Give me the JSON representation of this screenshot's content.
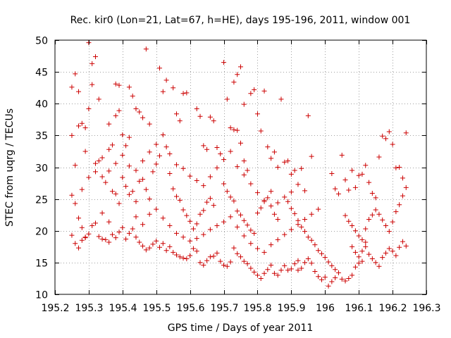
{
  "chart_data": {
    "type": "scatter",
    "title": "Rec. kir0 (Lon=21, Lat=67, h=HE), days 195-196, 2011, window 001",
    "xlabel": "GPS time / Days of year 2011",
    "ylabel": "STEC from uqrg / TECUs",
    "xlim": [
      195.2,
      196.3
    ],
    "ylim": [
      10,
      50
    ],
    "x_ticks": [
      195.2,
      195.3,
      195.4,
      195.5,
      195.6,
      195.7,
      195.8,
      195.9,
      196.0,
      196.1,
      196.2,
      196.3
    ],
    "x_tick_labels": [
      "195.2",
      "195.3",
      "195.4",
      "195.5",
      "195.6",
      "195.7",
      "195.8",
      "195.9",
      "196",
      "196.1",
      "196.2",
      "196.3"
    ],
    "y_ticks": [
      10,
      15,
      20,
      25,
      30,
      35,
      40,
      45,
      50
    ],
    "y_tick_labels": [
      "10",
      "15",
      "20",
      "25",
      "30",
      "35",
      "40",
      "45",
      "50"
    ],
    "grid": true,
    "legend": "none",
    "marker": "plus",
    "color": "#cc0000",
    "points": [
      [
        195.25,
        42.6
      ],
      [
        195.26,
        44.7
      ],
      [
        195.27,
        41.9
      ],
      [
        195.25,
        35.0
      ],
      [
        195.26,
        30.3
      ],
      [
        195.27,
        36.5
      ],
      [
        195.28,
        36.9
      ],
      [
        195.29,
        32.5
      ],
      [
        195.3,
        49.6
      ],
      [
        195.31,
        46.3
      ],
      [
        195.32,
        47.4
      ],
      [
        195.33,
        40.7
      ],
      [
        195.31,
        43.0
      ],
      [
        195.3,
        39.2
      ],
      [
        195.29,
        36.2
      ],
      [
        195.25,
        25.6
      ],
      [
        195.26,
        24.3
      ],
      [
        195.27,
        22.0
      ],
      [
        195.28,
        20.5
      ],
      [
        195.29,
        19.0
      ],
      [
        195.25,
        19.3
      ],
      [
        195.26,
        18.0
      ],
      [
        195.27,
        17.3
      ],
      [
        195.28,
        18.5
      ],
      [
        195.29,
        18.9
      ],
      [
        195.3,
        19.5
      ],
      [
        195.31,
        20.8
      ],
      [
        195.32,
        21.2
      ],
      [
        195.33,
        19.1
      ],
      [
        195.34,
        18.7
      ],
      [
        195.32,
        30.6
      ],
      [
        195.33,
        31.0
      ],
      [
        195.34,
        28.5
      ],
      [
        195.35,
        27.6
      ],
      [
        195.36,
        29.4
      ],
      [
        195.37,
        26.2
      ],
      [
        195.38,
        25.8
      ],
      [
        195.39,
        24.3
      ],
      [
        195.36,
        36.8
      ],
      [
        195.37,
        33.5
      ],
      [
        195.38,
        38.1
      ],
      [
        195.39,
        38.9
      ],
      [
        195.4,
        35.1
      ],
      [
        195.41,
        33.4
      ],
      [
        195.42,
        34.7
      ],
      [
        195.38,
        43.1
      ],
      [
        195.39,
        42.9
      ],
      [
        195.42,
        42.6
      ],
      [
        195.43,
        41.2
      ],
      [
        195.44,
        39.2
      ],
      [
        195.45,
        38.7
      ],
      [
        195.46,
        37.8
      ],
      [
        195.47,
        48.6
      ],
      [
        195.48,
        36.8
      ],
      [
        195.35,
        18.6
      ],
      [
        195.36,
        18.2
      ],
      [
        195.37,
        19.4
      ],
      [
        195.38,
        18.9
      ],
      [
        195.39,
        19.8
      ],
      [
        195.4,
        20.5
      ],
      [
        195.41,
        18.7
      ],
      [
        195.42,
        19.6
      ],
      [
        195.43,
        20.3
      ],
      [
        195.44,
        19.0
      ],
      [
        195.45,
        18.2
      ],
      [
        195.46,
        17.6
      ],
      [
        195.47,
        17.0
      ],
      [
        195.48,
        17.3
      ],
      [
        195.49,
        17.9
      ],
      [
        195.5,
        18.4
      ],
      [
        195.4,
        28.4
      ],
      [
        195.41,
        27.0
      ],
      [
        195.42,
        25.7
      ],
      [
        195.43,
        26.2
      ],
      [
        195.44,
        24.6
      ],
      [
        195.45,
        27.8
      ],
      [
        195.46,
        28.1
      ],
      [
        195.47,
        26.5
      ],
      [
        195.48,
        25.0
      ],
      [
        195.49,
        29.3
      ],
      [
        195.5,
        30.5
      ],
      [
        195.51,
        31.8
      ],
      [
        195.52,
        35.1
      ],
      [
        195.53,
        33.2
      ],
      [
        195.51,
        45.6
      ],
      [
        195.52,
        41.9
      ],
      [
        195.53,
        43.7
      ],
      [
        195.55,
        42.5
      ],
      [
        195.56,
        38.4
      ],
      [
        195.57,
        37.3
      ],
      [
        195.58,
        41.6
      ],
      [
        195.59,
        41.7
      ],
      [
        195.54,
        29.0
      ],
      [
        195.55,
        26.6
      ],
      [
        195.56,
        25.4
      ],
      [
        195.57,
        24.8
      ],
      [
        195.58,
        23.3
      ],
      [
        195.59,
        22.4
      ],
      [
        195.6,
        21.5
      ],
      [
        195.61,
        20.3
      ],
      [
        195.62,
        21.1
      ],
      [
        195.63,
        22.6
      ],
      [
        195.64,
        23.2
      ],
      [
        195.65,
        24.5
      ],
      [
        195.66,
        25.1
      ],
      [
        195.67,
        24.0
      ],
      [
        195.51,
        17.4
      ],
      [
        195.52,
        18.0
      ],
      [
        195.53,
        16.9
      ],
      [
        195.54,
        17.5
      ],
      [
        195.55,
        16.6
      ],
      [
        195.56,
        16.2
      ],
      [
        195.57,
        15.9
      ],
      [
        195.58,
        15.7
      ],
      [
        195.59,
        15.6
      ],
      [
        195.6,
        16.1
      ],
      [
        195.61,
        17.2
      ],
      [
        195.62,
        16.8
      ],
      [
        195.63,
        15.0
      ],
      [
        195.64,
        14.6
      ],
      [
        195.65,
        15.3
      ],
      [
        195.66,
        15.9
      ],
      [
        195.67,
        16.0
      ],
      [
        195.68,
        16.5
      ],
      [
        195.69,
        15.2
      ],
      [
        195.7,
        14.6
      ],
      [
        195.71,
        14.4
      ],
      [
        195.72,
        15.1
      ],
      [
        195.62,
        39.2
      ],
      [
        195.63,
        38.0
      ],
      [
        195.64,
        33.4
      ],
      [
        195.65,
        32.8
      ],
      [
        195.66,
        37.9
      ],
      [
        195.67,
        37.3
      ],
      [
        195.68,
        33.1
      ],
      [
        195.69,
        32.1
      ],
      [
        195.7,
        46.5
      ],
      [
        195.71,
        40.7
      ],
      [
        195.72,
        36.2
      ],
      [
        195.73,
        43.4
      ],
      [
        195.74,
        44.6
      ],
      [
        195.75,
        45.8
      ],
      [
        195.76,
        39.9
      ],
      [
        195.73,
        35.9
      ],
      [
        195.74,
        35.8
      ],
      [
        195.75,
        33.8
      ],
      [
        195.76,
        31.0
      ],
      [
        195.77,
        29.5
      ],
      [
        195.78,
        41.6
      ],
      [
        195.79,
        42.2
      ],
      [
        195.8,
        38.4
      ],
      [
        195.81,
        35.7
      ],
      [
        195.82,
        42.0
      ],
      [
        195.7,
        27.4
      ],
      [
        195.71,
        26.2
      ],
      [
        195.72,
        25.3
      ],
      [
        195.73,
        24.7
      ],
      [
        195.74,
        23.1
      ],
      [
        195.75,
        22.5
      ],
      [
        195.76,
        21.6
      ],
      [
        195.77,
        20.9
      ],
      [
        195.78,
        20.1
      ],
      [
        195.79,
        19.6
      ],
      [
        195.8,
        22.8
      ],
      [
        195.81,
        23.6
      ],
      [
        195.82,
        24.8
      ],
      [
        195.83,
        25.2
      ],
      [
        195.84,
        23.9
      ],
      [
        195.85,
        22.6
      ],
      [
        195.86,
        21.8
      ],
      [
        195.73,
        17.3
      ],
      [
        195.74,
        16.4
      ],
      [
        195.75,
        15.9
      ],
      [
        195.76,
        15.2
      ],
      [
        195.77,
        14.8
      ],
      [
        195.78,
        14.1
      ],
      [
        195.79,
        13.5
      ],
      [
        195.8,
        13.0
      ],
      [
        195.81,
        12.5
      ],
      [
        195.82,
        13.3
      ],
      [
        195.83,
        13.9
      ],
      [
        195.84,
        14.6
      ],
      [
        195.85,
        13.3
      ],
      [
        195.86,
        13.0
      ],
      [
        195.87,
        13.8
      ],
      [
        195.88,
        14.5
      ],
      [
        195.89,
        13.8
      ],
      [
        195.9,
        14.0
      ],
      [
        195.91,
        14.8
      ],
      [
        195.92,
        15.3
      ],
      [
        195.83,
        33.2
      ],
      [
        195.84,
        31.4
      ],
      [
        195.85,
        32.4
      ],
      [
        195.86,
        30.0
      ],
      [
        195.87,
        40.7
      ],
      [
        195.88,
        30.8
      ],
      [
        195.89,
        31.0
      ],
      [
        195.9,
        28.9
      ],
      [
        195.91,
        29.5
      ],
      [
        195.92,
        27.3
      ],
      [
        195.93,
        29.8
      ],
      [
        195.94,
        26.3
      ],
      [
        195.95,
        38.1
      ],
      [
        195.96,
        31.7
      ],
      [
        195.88,
        25.3
      ],
      [
        195.89,
        24.6
      ],
      [
        195.9,
        23.5
      ],
      [
        195.91,
        22.7
      ],
      [
        195.92,
        21.6
      ],
      [
        195.93,
        20.6
      ],
      [
        195.94,
        19.9
      ],
      [
        195.95,
        19.0
      ],
      [
        195.96,
        18.5
      ],
      [
        195.97,
        17.8
      ],
      [
        195.98,
        16.9
      ],
      [
        195.99,
        16.4
      ],
      [
        196.0,
        15.8
      ],
      [
        196.01,
        15.1
      ],
      [
        196.02,
        14.5
      ],
      [
        196.03,
        13.9
      ],
      [
        195.92,
        13.8
      ],
      [
        195.93,
        14.1
      ],
      [
        195.94,
        15.0
      ],
      [
        195.95,
        15.6
      ],
      [
        195.96,
        14.9
      ],
      [
        195.97,
        13.6
      ],
      [
        195.98,
        12.8
      ],
      [
        195.99,
        12.3
      ],
      [
        196.0,
        12.7
      ],
      [
        196.01,
        11.3
      ],
      [
        196.02,
        12.0
      ],
      [
        196.03,
        12.6
      ],
      [
        196.04,
        13.4
      ],
      [
        196.05,
        12.4
      ],
      [
        196.06,
        12.1
      ],
      [
        196.07,
        12.5
      ],
      [
        196.08,
        13.0
      ],
      [
        196.09,
        14.3
      ],
      [
        196.1,
        14.9
      ],
      [
        196.11,
        15.2
      ],
      [
        196.02,
        29.0
      ],
      [
        196.03,
        26.6
      ],
      [
        196.04,
        25.8
      ],
      [
        196.05,
        31.9
      ],
      [
        196.06,
        28.0
      ],
      [
        196.07,
        26.4
      ],
      [
        196.08,
        29.5
      ],
      [
        196.09,
        26.8
      ],
      [
        196.1,
        28.7
      ],
      [
        196.11,
        28.9
      ],
      [
        196.12,
        30.3
      ],
      [
        196.13,
        27.6
      ],
      [
        196.14,
        25.9
      ],
      [
        196.15,
        25.2
      ],
      [
        196.16,
        31.6
      ],
      [
        196.17,
        34.9
      ],
      [
        196.18,
        34.5
      ],
      [
        196.19,
        35.6
      ],
      [
        196.2,
        33.6
      ],
      [
        196.21,
        29.9
      ],
      [
        196.22,
        30.0
      ],
      [
        196.23,
        28.3
      ],
      [
        196.24,
        35.4
      ],
      [
        196.06,
        22.4
      ],
      [
        196.07,
        21.5
      ],
      [
        196.08,
        20.8
      ],
      [
        196.09,
        20.0
      ],
      [
        196.1,
        19.2
      ],
      [
        196.11,
        18.6
      ],
      [
        196.12,
        20.3
      ],
      [
        196.13,
        21.8
      ],
      [
        196.14,
        22.5
      ],
      [
        196.15,
        23.3
      ],
      [
        196.16,
        22.6
      ],
      [
        196.17,
        21.7
      ],
      [
        196.18,
        20.8
      ],
      [
        196.19,
        19.9
      ],
      [
        196.2,
        21.4
      ],
      [
        196.21,
        23.0
      ],
      [
        196.22,
        24.1
      ],
      [
        196.23,
        25.5
      ],
      [
        196.24,
        26.8
      ],
      [
        196.12,
        17.5
      ],
      [
        196.13,
        16.3
      ],
      [
        196.14,
        15.6
      ],
      [
        196.15,
        15.0
      ],
      [
        196.16,
        14.4
      ],
      [
        196.17,
        15.8
      ],
      [
        196.18,
        16.5
      ],
      [
        196.19,
        17.2
      ],
      [
        196.2,
        16.8
      ],
      [
        196.21,
        16.1
      ],
      [
        196.22,
        17.4
      ],
      [
        196.23,
        18.3
      ],
      [
        196.24,
        17.6
      ],
      [
        196.08,
        17.5
      ],
      [
        196.09,
        16.6
      ],
      [
        196.1,
        15.9
      ],
      [
        196.11,
        16.8
      ],
      [
        196.12,
        18.2
      ],
      [
        195.34,
        22.8
      ],
      [
        195.36,
        21.4
      ],
      [
        195.44,
        22.2
      ],
      [
        195.46,
        21.0
      ],
      [
        195.48,
        22.6
      ],
      [
        195.5,
        23.4
      ],
      [
        195.52,
        22.0
      ],
      [
        195.54,
        20.8
      ],
      [
        195.56,
        19.6
      ],
      [
        195.58,
        19.0
      ],
      [
        195.6,
        18.4
      ],
      [
        195.62,
        18.8
      ],
      [
        195.64,
        19.4
      ],
      [
        195.66,
        20.2
      ],
      [
        195.68,
        20.8
      ],
      [
        195.7,
        21.4
      ],
      [
        195.72,
        22.2
      ],
      [
        195.74,
        20.6
      ],
      [
        195.76,
        19.2
      ],
      [
        195.78,
        18.0
      ],
      [
        195.8,
        17.2
      ],
      [
        195.82,
        16.6
      ],
      [
        195.84,
        17.8
      ],
      [
        195.86,
        18.6
      ],
      [
        195.88,
        19.4
      ],
      [
        195.9,
        20.2
      ],
      [
        195.92,
        21.0
      ],
      [
        195.94,
        21.8
      ],
      [
        195.96,
        22.6
      ],
      [
        195.98,
        23.4
      ],
      [
        195.28,
        26.5
      ],
      [
        195.3,
        28.4
      ],
      [
        195.32,
        29.3
      ],
      [
        195.34,
        31.5
      ],
      [
        195.36,
        32.8
      ],
      [
        195.38,
        30.6
      ],
      [
        195.4,
        31.9
      ],
      [
        195.42,
        30.2
      ],
      [
        195.44,
        29.5
      ],
      [
        195.46,
        31.0
      ],
      [
        195.48,
        32.4
      ],
      [
        195.5,
        33.6
      ],
      [
        195.54,
        32.1
      ],
      [
        195.56,
        30.4
      ],
      [
        195.58,
        29.8
      ],
      [
        195.6,
        28.6
      ],
      [
        195.62,
        27.9
      ],
      [
        195.64,
        27.1
      ],
      [
        195.66,
        28.5
      ],
      [
        195.68,
        29.9
      ],
      [
        195.7,
        31.2
      ],
      [
        195.72,
        32.5
      ],
      [
        195.74,
        30.1
      ],
      [
        195.76,
        28.8
      ],
      [
        195.78,
        27.4
      ],
      [
        195.8,
        26.0
      ],
      [
        195.82,
        24.6
      ],
      [
        195.84,
        26.2
      ],
      [
        195.86,
        24.4
      ],
      [
        195.9,
        26.1
      ]
    ]
  }
}
